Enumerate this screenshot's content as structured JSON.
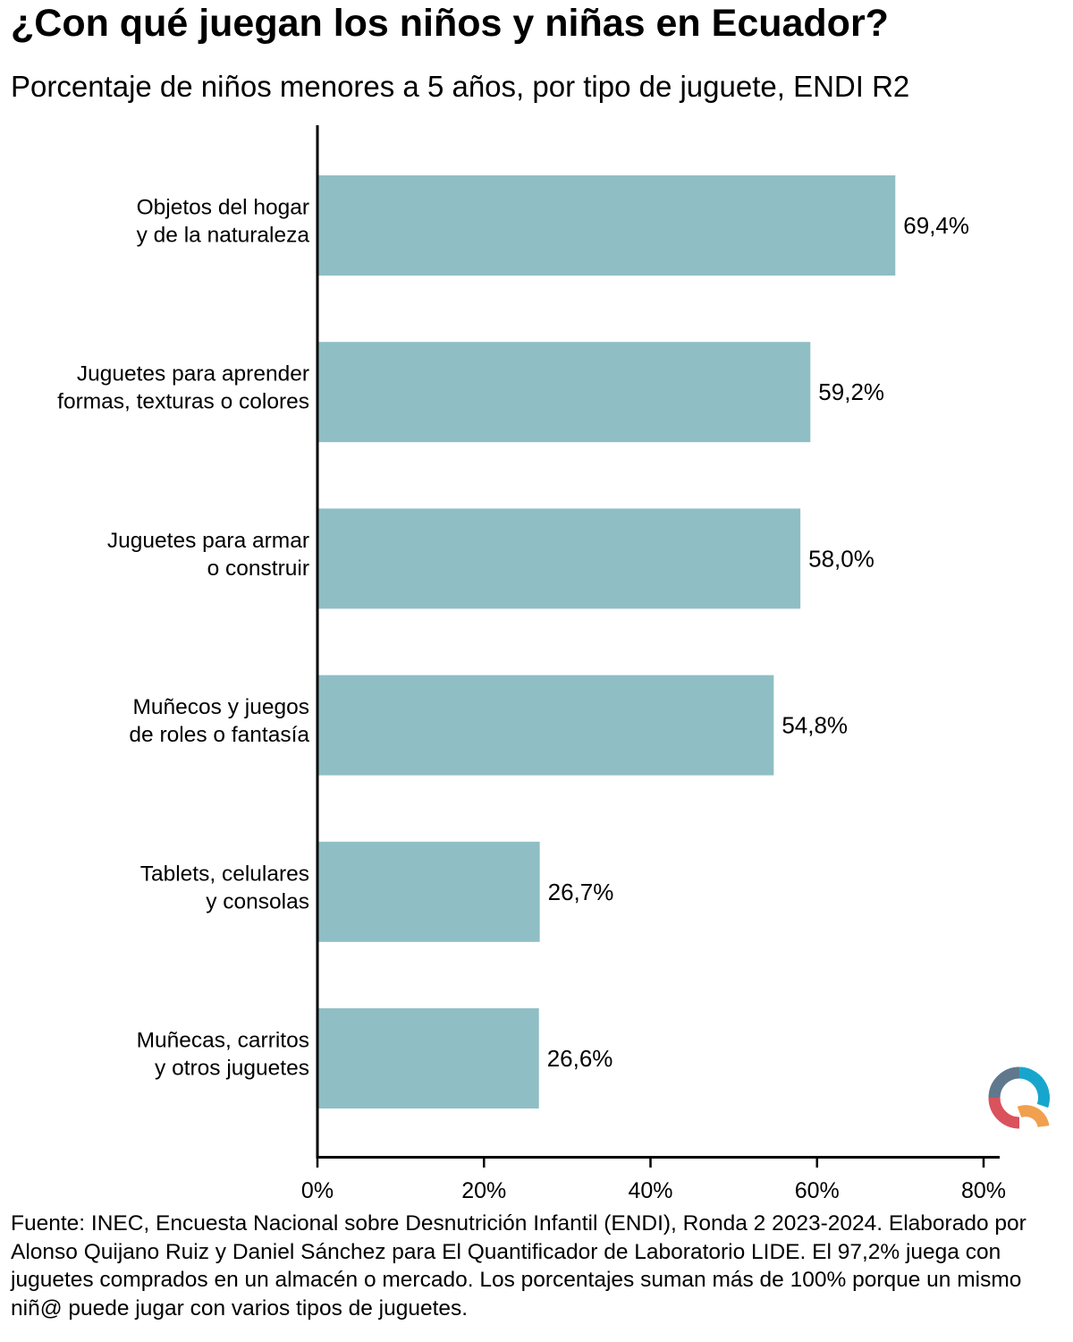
{
  "title": "¿Con qué juegan los niños y niñas en Ecuador?",
  "subtitle": "Porcentaje de niños menores a 5 años, por tipo de juguete, ENDI R2",
  "chart_data": {
    "type": "bar",
    "orientation": "horizontal",
    "categories": [
      [
        "Objetos del hogar",
        "y de la naturaleza"
      ],
      [
        "Juguetes para aprender",
        "formas, texturas o colores"
      ],
      [
        "Juguetes para armar",
        "o construir"
      ],
      [
        "Muñecos y juegos",
        "de roles o fantasía"
      ],
      [
        "Tablets, celulares",
        "y consolas"
      ],
      [
        "Muñecas, carritos",
        "y otros juguetes"
      ]
    ],
    "values": [
      69.4,
      59.2,
      58.0,
      54.8,
      26.7,
      26.6
    ],
    "value_labels": [
      "69,4%",
      "59,2%",
      "58,0%",
      "54,8%",
      "26,7%",
      "26,6%"
    ],
    "xlim": [
      0,
      80
    ],
    "xticks": [
      0,
      20,
      40,
      60,
      80
    ],
    "xtick_labels": [
      "0%",
      "20%",
      "40%",
      "60%",
      "80%"
    ],
    "bar_color": "#8fbec5",
    "grid": false
  },
  "footer": "Fuente: INEC, Encuesta Nacional sobre Desnutrición Infantil (ENDI), Ronda 2 2023-2024. Elaborado por Alonso Quijano Ruiz y Daniel Sánchez para El Quantificador de Laboratorio LIDE. El 97,2% juega con juguetes comprados en un almacén o mercado. Los porcentajes suman más de 100% porque un mismo niñ@ puede jugar con varios tipos de juguetes.",
  "logo": {
    "icon": "quantificador-logo-icon",
    "colors": [
      "#60788d",
      "#16a6cd",
      "#d9525c",
      "#f0a04e"
    ]
  }
}
